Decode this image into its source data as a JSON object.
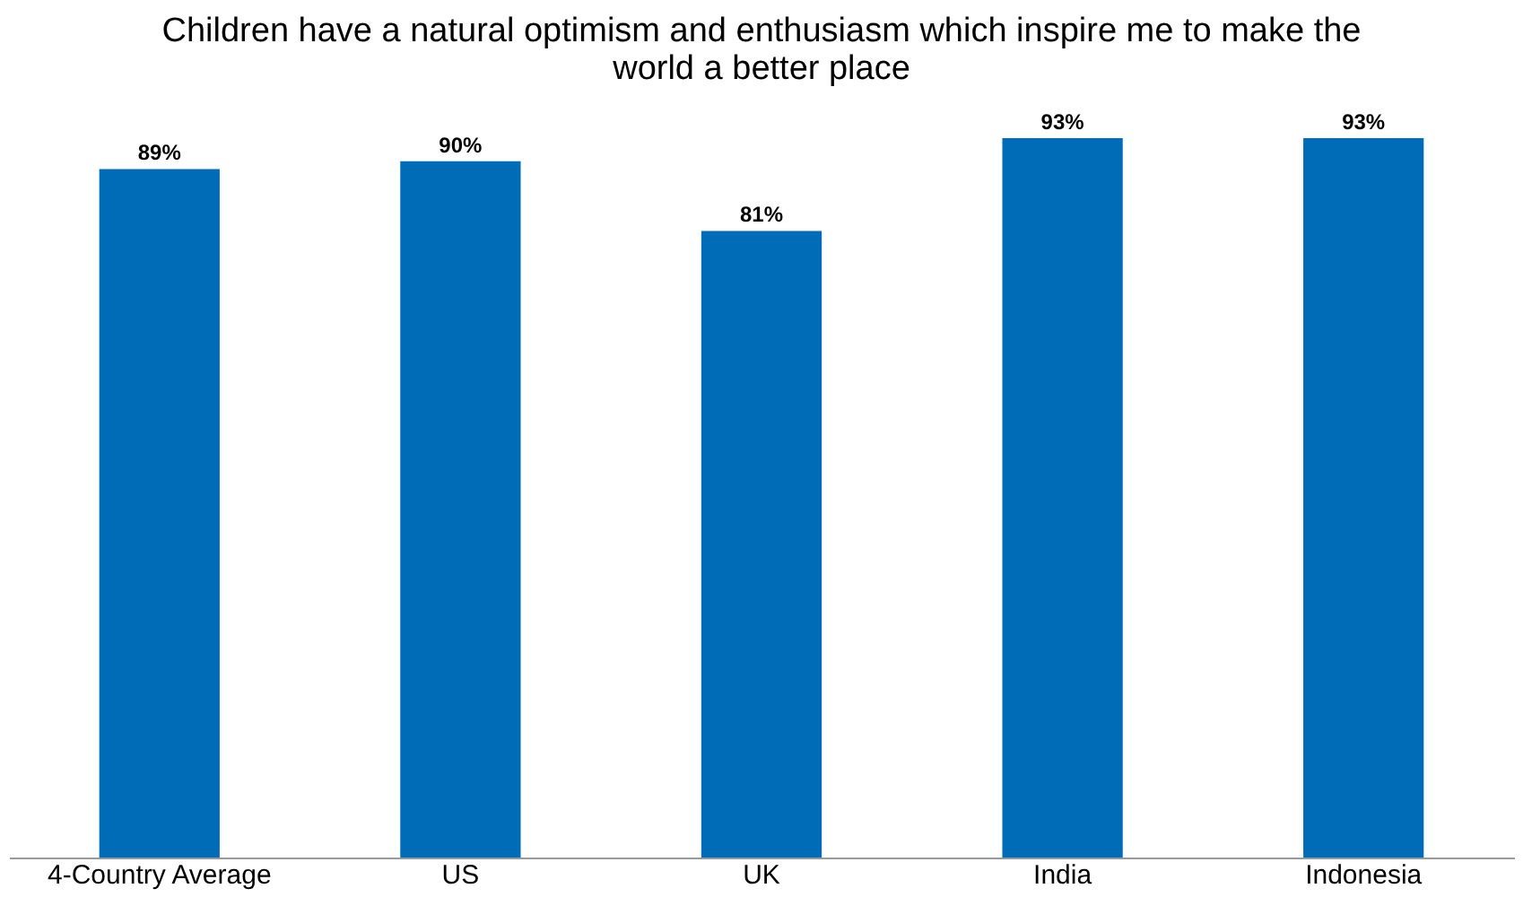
{
  "chart_data": {
    "type": "bar",
    "title": "Children have a natural optimism and enthusiasm which inspire me to make the\nworld a better place",
    "categories": [
      "4-Country Average",
      "US",
      "UK",
      "India",
      "Indonesia"
    ],
    "values": [
      89,
      90,
      81,
      93,
      93
    ],
    "value_labels": [
      "89%",
      "90%",
      "81%",
      "93%",
      "93%"
    ],
    "color": "#006bb6",
    "ylim": [
      0,
      93
    ],
    "grid": false,
    "tick_labels": "x"
  }
}
